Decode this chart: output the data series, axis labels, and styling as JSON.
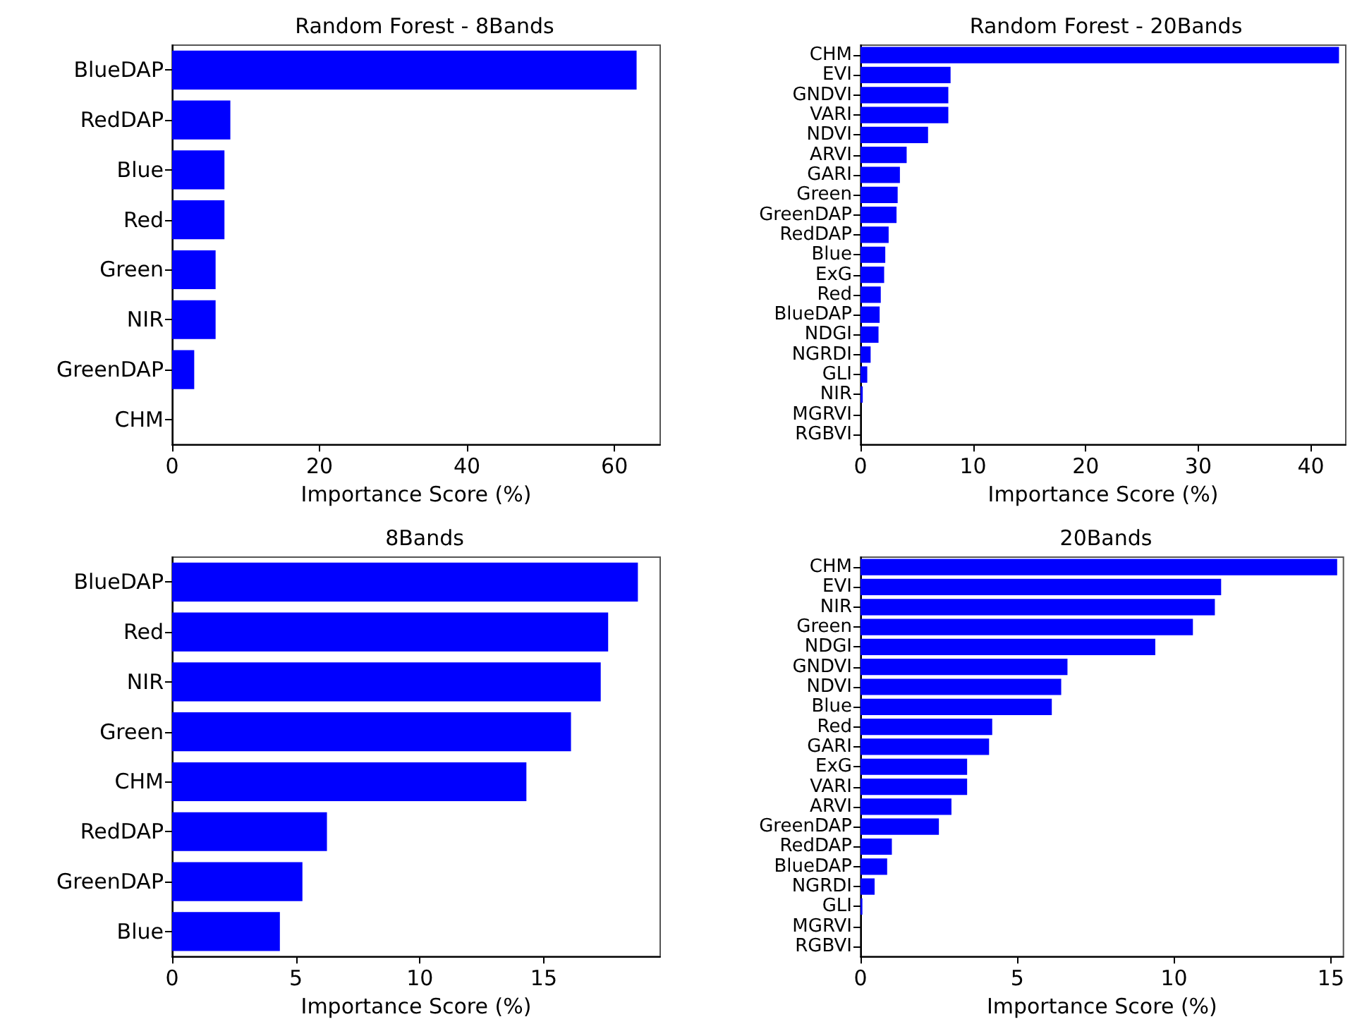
{
  "chart_data": [
    {
      "type": "bar",
      "orientation": "horizontal",
      "title": "Random Forest - 8Bands",
      "xlabel": "Importance Score (%)",
      "color": "#0000ff",
      "xlim": [
        0,
        66.2
      ],
      "xticks": [
        0,
        20,
        40,
        60
      ],
      "categories": [
        "BlueDAP",
        "RedDAP",
        "Blue",
        "Red",
        "Green",
        "NIR",
        "GreenDAP",
        "CHM"
      ],
      "values": [
        63.0,
        7.9,
        7.1,
        7.1,
        5.9,
        5.9,
        3.0,
        0
      ]
    },
    {
      "type": "bar",
      "orientation": "horizontal",
      "title": "Random Forest - 20Bands",
      "xlabel": "Importance Score (%)",
      "color": "#0000ff",
      "xlim": [
        0,
        43.1
      ],
      "xticks": [
        0,
        10,
        20,
        30,
        40
      ],
      "categories": [
        "CHM",
        "EVI",
        "GNDVI",
        "VARI",
        "NDVI",
        "ARVI",
        "GARI",
        "Green",
        "GreenDAP",
        "RedDAP",
        "Blue",
        "ExG",
        "Red",
        "BlueDAP",
        "NDGI",
        "NGRDI",
        "GLI",
        "NIR",
        "MGRVI",
        "RGBVI"
      ],
      "values": [
        42.5,
        8.0,
        7.8,
        7.8,
        6.0,
        4.1,
        3.5,
        3.3,
        3.2,
        2.5,
        2.2,
        2.1,
        1.8,
        1.7,
        1.6,
        0.9,
        0.6,
        0.2,
        0,
        0
      ]
    },
    {
      "type": "bar",
      "orientation": "horizontal",
      "title": "8Bands",
      "xlabel": "Importance Score (%)",
      "color": "#0000ff",
      "xlim": [
        0,
        19.7
      ],
      "xticks": [
        0,
        5,
        10,
        15
      ],
      "categories": [
        "BlueDAP",
        "Red",
        "NIR",
        "Green",
        "CHM",
        "RedDAP",
        "GreenDAP",
        "Blue"
      ],
      "values": [
        18.8,
        17.6,
        17.3,
        16.1,
        14.3,
        6.25,
        5.26,
        4.35
      ]
    },
    {
      "type": "bar",
      "orientation": "horizontal",
      "title": "20Bands",
      "xlabel": "Importance Score (%)",
      "color": "#0000ff",
      "xlim": [
        0,
        15.4
      ],
      "xticks": [
        0,
        5,
        10,
        15
      ],
      "categories": [
        "CHM",
        "EVI",
        "NIR",
        "Green",
        "NDGI",
        "GNDVI",
        "NDVI",
        "Blue",
        "Red",
        "GARI",
        "ExG",
        "VARI",
        "ARVI",
        "GreenDAP",
        "RedDAP",
        "BlueDAP",
        "NGRDI",
        "GLI",
        "MGRVI",
        "RGBVI"
      ],
      "values": [
        15.2,
        11.5,
        11.3,
        10.6,
        9.4,
        6.6,
        6.4,
        6.1,
        4.2,
        4.1,
        3.4,
        3.4,
        2.9,
        2.5,
        1.0,
        0.85,
        0.45,
        0.06,
        0,
        0
      ]
    }
  ]
}
